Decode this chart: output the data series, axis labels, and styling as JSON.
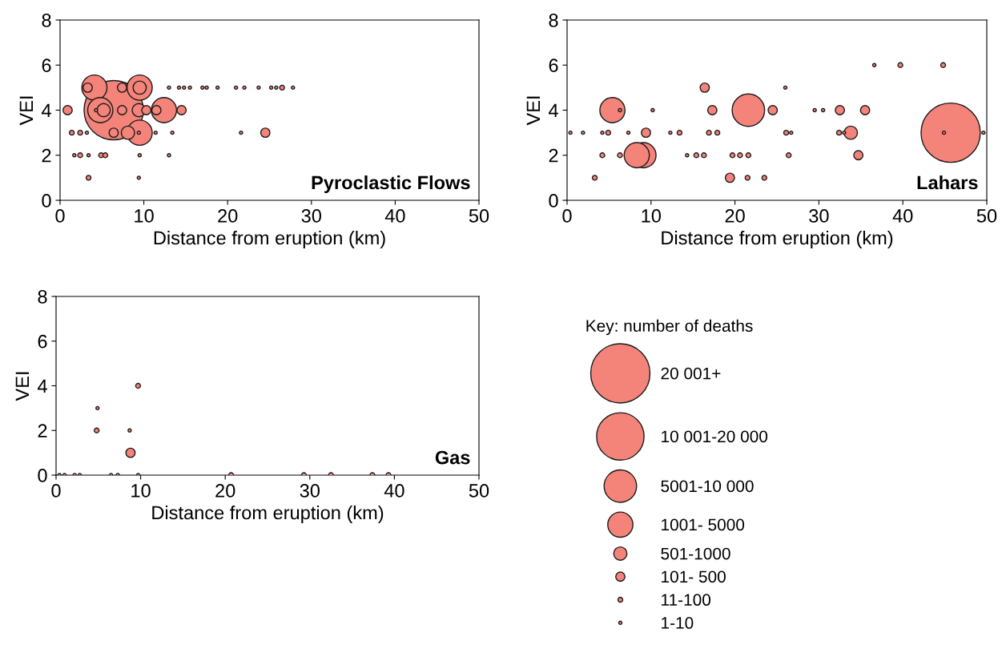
{
  "chart_data": [
    {
      "type": "bubble",
      "title": "Pyroclastic Flows",
      "xlabel": "Distance from eruption (km)",
      "ylabel": "VEI",
      "xlim": [
        0,
        50
      ],
      "xticks": [
        0,
        10,
        20,
        30,
        40,
        50
      ],
      "ylim": [
        0,
        8
      ],
      "yticks": [
        0,
        2,
        4,
        6,
        8
      ],
      "grid": false,
      "series": [
        {
          "color": "#f4837a",
          "x": [
            4.1,
            3.3,
            7.4,
            9.5,
            9.5,
            13.0,
            14.2,
            14.8,
            15.5,
            17.0,
            17.5,
            18.8,
            21.0,
            22.0,
            23.7,
            25.2,
            25.8,
            26.5,
            27.8,
            6.4,
            0.9,
            4.8,
            5.2,
            4.3,
            7.4,
            9.4,
            10.3,
            12.4,
            11.5,
            14.5,
            9.5,
            1.4,
            2.4,
            3.2,
            6.4,
            8.1,
            9.4,
            11.4,
            13.4,
            21.6,
            24.5,
            1.7,
            2.4,
            3.4,
            4.9,
            5.4,
            9.5,
            13.0,
            3.4,
            9.4
          ],
          "values": [
            5,
            5,
            5,
            5,
            5,
            5,
            5,
            5,
            5,
            5,
            5,
            5,
            5,
            5,
            5,
            5,
            5,
            5,
            5,
            4,
            4,
            4,
            4,
            4,
            4,
            4,
            4,
            4,
            4,
            4,
            3,
            3,
            3,
            3,
            3,
            3,
            3,
            3,
            3,
            3,
            3,
            2,
            2,
            2,
            2,
            2,
            2,
            2,
            1,
            1
          ],
          "sizes": [
            0.18,
            0.024,
            0.024,
            0.18,
            0.05,
            0.003,
            0.003,
            0.003,
            0.003,
            0.003,
            0.003,
            0.003,
            0.003,
            0.003,
            0.003,
            0.003,
            0.003,
            0.0066,
            0.003,
            1,
            0.024,
            0.18,
            0.05,
            0.003,
            0.024,
            0.05,
            0.024,
            0.18,
            0.024,
            0.024,
            0.18,
            0.0066,
            0.0066,
            0.003,
            0.024,
            0.05,
            0.003,
            0.003,
            0.003,
            0.003,
            0.024,
            0.003,
            0.0066,
            0.003,
            0.0066,
            0.0066,
            0.003,
            0.003,
            0.0066,
            0.003
          ]
        }
      ]
    },
    {
      "type": "bubble",
      "title": "Lahars",
      "xlabel": "Distance from eruption (km)",
      "ylabel": "VEI",
      "xlim": [
        0,
        50
      ],
      "xticks": [
        0,
        10,
        20,
        30,
        40,
        50
      ],
      "ylim": [
        0,
        8
      ],
      "yticks": [
        0,
        2,
        4,
        6,
        8
      ],
      "grid": false,
      "series": [
        {
          "color": "#f4837a",
          "x": [
            36.6,
            39.7,
            44.8,
            16.4,
            26.0,
            5.4,
            6.3,
            10.2,
            17.3,
            21.6,
            24.5,
            29.5,
            30.5,
            32.5,
            35.5,
            45.7,
            0.4,
            1.9,
            4.2,
            4.9,
            7.3,
            9.4,
            12.3,
            13.4,
            16.9,
            17.9,
            26.1,
            26.7,
            32.4,
            33.0,
            33.8,
            44.9,
            49.6,
            9.1,
            8.3,
            4.2,
            6.3,
            14.3,
            15.4,
            16.3,
            19.7,
            20.6,
            21.6,
            26.4,
            34.7,
            3.3,
            19.4,
            21.5,
            23.5
          ],
          "values": [
            6,
            6,
            6,
            5,
            5,
            4,
            4,
            4,
            4,
            4,
            4,
            4,
            4,
            4,
            4,
            3,
            3,
            3,
            3,
            3,
            3,
            3,
            3,
            3,
            3,
            3,
            3,
            3,
            3,
            3,
            3,
            3,
            3,
            2,
            2,
            2,
            2,
            2,
            2,
            2,
            2,
            2,
            2,
            2,
            2,
            1,
            1,
            1,
            1
          ],
          "sizes": [
            0.003,
            0.0066,
            0.0066,
            0.024,
            0.003,
            0.18,
            0.003,
            0.003,
            0.024,
            0.3,
            0.024,
            0.003,
            0.003,
            0.024,
            0.024,
            1,
            0.003,
            0.003,
            0.003,
            0.0066,
            0.003,
            0.024,
            0.003,
            0.0066,
            0.0066,
            0.0066,
            0.0066,
            0.003,
            0.0066,
            0.003,
            0.05,
            0.003,
            0.003,
            0.18,
            0.18,
            0.0066,
            0.0066,
            0.003,
            0.0066,
            0.0066,
            0.0066,
            0.0066,
            0.0066,
            0.0066,
            0.024,
            0.0066,
            0.024,
            0.0066,
            0.0066
          ]
        }
      ]
    },
    {
      "type": "bubble",
      "title": "Gas",
      "xlabel": "Distance from eruption (km)",
      "ylabel": "VEI",
      "xlim": [
        0,
        50
      ],
      "xticks": [
        0,
        10,
        20,
        30,
        40,
        50
      ],
      "ylim": [
        0,
        8
      ],
      "yticks": [
        0,
        2,
        4,
        6,
        8
      ],
      "grid": false,
      "legend_title": "Key: number of deaths",
      "size_legend": [
        {
          "value": 1,
          "label": "20 001+"
        },
        {
          "value": 0.64,
          "label": "10 001-20 000"
        },
        {
          "value": 0.3,
          "label": "5001-10 000"
        },
        {
          "value": 0.18,
          "label": "1001- 5000"
        },
        {
          "value": 0.05,
          "label": "501-1000"
        },
        {
          "value": 0.024,
          "label": "101- 500"
        },
        {
          "value": 0.0066,
          "label": "11-100"
        },
        {
          "value": 0.003,
          "label": "1-10"
        }
      ],
      "series": [
        {
          "color": "#f4837a",
          "x": [
            9.7,
            4.9,
            4.8,
            8.7,
            8.8,
            0.4,
            1.0,
            2.2,
            2.8,
            6.5,
            7.3,
            9.7,
            20.7,
            29.3,
            32.5,
            37.4,
            39.3
          ],
          "values": [
            4,
            3,
            2,
            2,
            1,
            0,
            0,
            0,
            0,
            0,
            0,
            0,
            0,
            0,
            0,
            0,
            0
          ],
          "sizes": [
            0.0066,
            0.003,
            0.0066,
            0.003,
            0.024,
            0.003,
            0.003,
            0.003,
            0.003,
            0.003,
            0.003,
            0.003,
            0.0066,
            0.0066,
            0.0066,
            0.0066,
            0.0066
          ]
        }
      ]
    }
  ]
}
